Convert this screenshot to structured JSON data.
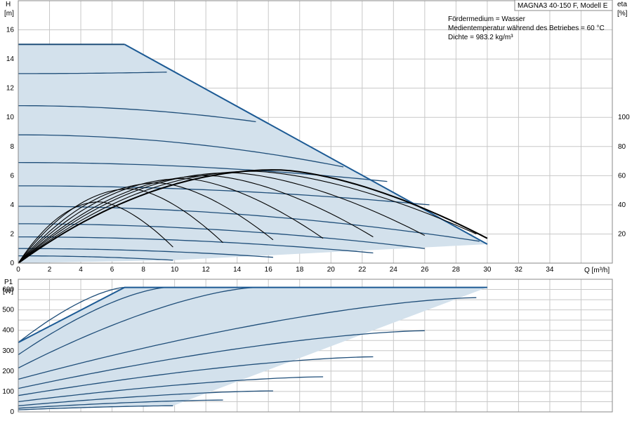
{
  "title": "MAGNA3 40-150 F, Modell E",
  "info": [
    "Fördermedium = Wasser",
    "Medientemperatur während des Betriebes = 60 °C",
    "Dichte = 983.2 kg/m³"
  ],
  "colors": {
    "curve": "#1f4e79",
    "envelope": "#1c5a94",
    "fill": "#d3e1ec",
    "eta": "#000000",
    "grid": "#c8c8c8"
  },
  "chart_data": [
    {
      "type": "line",
      "name": "head",
      "xlabel": "Q [m³/h]",
      "ylabel_top": "H",
      "ylabel_unit": "[m]",
      "y2label_top": "eta",
      "y2label_unit": "[%]",
      "xlim": [
        0,
        38
      ],
      "ylim": [
        0,
        18
      ],
      "y2lim": [
        0,
        180
      ],
      "xticks": [
        "0",
        "2",
        "4",
        "6",
        "8",
        "10",
        "12",
        "14",
        "16",
        "18",
        "20",
        "22",
        "24",
        "26",
        "28",
        "30",
        "32",
        "34"
      ],
      "yticks": [
        "0",
        "2",
        "4",
        "6",
        "8",
        "10",
        "12",
        "14",
        "16"
      ],
      "y2ticks": [
        "20",
        "40",
        "60",
        "80",
        "100"
      ],
      "envelope": [
        [
          0,
          15
        ],
        [
          6.8,
          15
        ],
        [
          30,
          1.3
        ],
        [
          9.9,
          0.2
        ],
        [
          0,
          0
        ]
      ],
      "curves": [
        {
          "h0": 15.0,
          "qmax": 6.8,
          "hend": 15.0
        },
        {
          "h0": 13.0,
          "qmax": 9.5,
          "hend": 13.1
        },
        {
          "h0": 10.8,
          "qmax": 15.2,
          "hend": 9.7
        },
        {
          "h0": 8.8,
          "qmax": 20.8,
          "hend": 6.6
        },
        {
          "h0": 6.9,
          "qmax": 23.6,
          "hend": 5.6
        },
        {
          "h0": 5.3,
          "qmax": 26.3,
          "hend": 4.0
        },
        {
          "h0": 3.9,
          "qmax": 29.5,
          "hend": 1.5
        },
        {
          "h0": 2.7,
          "qmax": 26.0,
          "hend": 1.0
        },
        {
          "h0": 1.8,
          "qmax": 22.7,
          "hend": 0.7
        },
        {
          "h0": 1.0,
          "qmax": 16.3,
          "hend": 0.4
        },
        {
          "h0": 0.5,
          "qmax": 9.9,
          "hend": 0.2
        }
      ],
      "eta_curves": [
        {
          "qpeak": 5.2,
          "peak": 42,
          "qend": 9.9,
          "end": 11
        },
        {
          "qpeak": 7.2,
          "peak": 51,
          "qend": 13.1,
          "end": 14
        },
        {
          "qpeak": 9.0,
          "peak": 55,
          "qend": 16.3,
          "end": 16
        },
        {
          "qpeak": 10.6,
          "peak": 58,
          "qend": 19.5,
          "end": 17
        },
        {
          "qpeak": 12.2,
          "peak": 60,
          "qend": 22.7,
          "end": 18
        },
        {
          "qpeak": 13.6,
          "peak": 62,
          "qend": 26.0,
          "end": 19
        },
        {
          "qpeak": 15.0,
          "peak": 63,
          "qend": 29.3,
          "end": 20
        },
        {
          "qpeak": 16.5,
          "peak": 64,
          "qend": 30.0,
          "end": 17
        }
      ]
    },
    {
      "type": "line",
      "name": "power",
      "ylabel_top": "P1",
      "ylabel_unit": "[W]",
      "xlim": [
        0,
        38
      ],
      "ylim": [
        0,
        650
      ],
      "yticks": [
        "0",
        "100",
        "200",
        "300",
        "400",
        "500",
        "600"
      ],
      "envelope": [
        [
          0,
          340
        ],
        [
          6.8,
          610
        ],
        [
          30,
          610
        ],
        [
          9.9,
          30
        ],
        [
          0,
          10
        ]
      ],
      "curves": [
        {
          "p0": 340,
          "qend": 6.8,
          "pend": 610
        },
        {
          "p0": 280,
          "qend": 9.5,
          "pend": 610
        },
        {
          "p0": 215,
          "qend": 15.2,
          "pend": 610
        },
        {
          "p0": 160,
          "qend": 29.3,
          "pend": 560
        },
        {
          "p0": 115,
          "qend": 26.0,
          "pend": 398
        },
        {
          "p0": 80,
          "qend": 22.7,
          "pend": 270
        },
        {
          "p0": 50,
          "qend": 19.5,
          "pend": 172
        },
        {
          "p0": 30,
          "qend": 16.3,
          "pend": 103
        },
        {
          "p0": 18,
          "qend": 13.1,
          "pend": 58
        },
        {
          "p0": 10,
          "qend": 9.9,
          "pend": 30
        }
      ]
    }
  ]
}
